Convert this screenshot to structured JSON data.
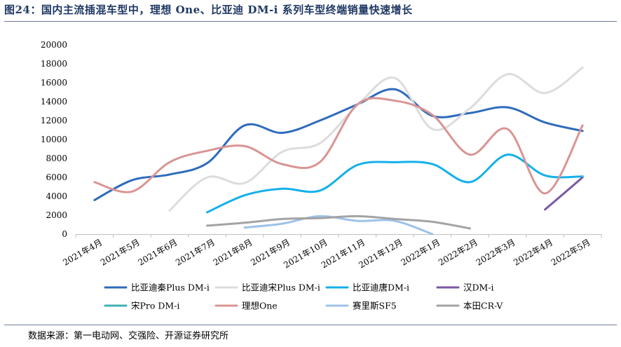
{
  "title": "图24：国内主流插混车型中，理想 One、比亚迪 DM-i 系列车型终端销量快速增长",
  "source": "数据来源：第一电动网、交强险、开源证券研究所",
  "chart_data": {
    "type": "line",
    "title": "",
    "xlabel": "",
    "ylabel": "",
    "ylim": [
      0,
      20000
    ],
    "yticks": [
      0,
      2000,
      4000,
      6000,
      8000,
      10000,
      12000,
      14000,
      16000,
      18000,
      20000
    ],
    "grid": false,
    "legend_position": "bottom",
    "categories": [
      "2021年4月",
      "2021年5月",
      "2021年6月",
      "2021年7月",
      "2021年8月",
      "2021年9月",
      "2021年10月",
      "2021年11月",
      "2021年12月",
      "2022年1月",
      "2022年2月",
      "2022年3月",
      "2022年4月",
      "2022年5月"
    ],
    "series": [
      {
        "name": "比亚迪秦Plus DM-i",
        "color": "#2e6bbd",
        "values": [
          3600,
          5700,
          6300,
          7500,
          11500,
          10700,
          12000,
          13700,
          15300,
          12500,
          12800,
          13400,
          11800,
          10900
        ]
      },
      {
        "name": "比亚迪宋Plus DM-i",
        "color": "#dcdcdc",
        "values": [
          null,
          null,
          2500,
          6000,
          5400,
          8700,
          9600,
          13600,
          16500,
          11100,
          13300,
          16900,
          14900,
          17600
        ]
      },
      {
        "name": "比亚迪唐DM-i",
        "color": "#14b0ea",
        "values": [
          null,
          null,
          null,
          2300,
          4100,
          4800,
          4600,
          7300,
          7600,
          7400,
          5500,
          8400,
          6200,
          6100
        ]
      },
      {
        "name": "汉DM-i",
        "color": "#7b57a4",
        "values": [
          null,
          null,
          null,
          null,
          null,
          null,
          null,
          null,
          null,
          null,
          null,
          null,
          2600,
          6000
        ]
      },
      {
        "name": "宋Pro DM-i",
        "color": "#3fb0b5",
        "values": [
          null,
          null,
          null,
          null,
          null,
          null,
          null,
          null,
          null,
          null,
          null,
          null,
          null,
          6100
        ]
      },
      {
        "name": "理想One",
        "color": "#d99494",
        "values": [
          5500,
          4500,
          7600,
          8800,
          9300,
          7400,
          7600,
          13700,
          14100,
          12600,
          8400,
          11100,
          4300,
          11500
        ]
      },
      {
        "name": "赛里斯SF5",
        "color": "#9ec2e9",
        "values": [
          null,
          null,
          null,
          null,
          700,
          1100,
          1900,
          1400,
          1400,
          0,
          null,
          null,
          null,
          null
        ]
      },
      {
        "name": "本田CR-V",
        "color": "#a3a3a3",
        "values": [
          null,
          null,
          null,
          900,
          1200,
          1600,
          1700,
          1900,
          1600,
          1300,
          600,
          null,
          null,
          null
        ]
      }
    ]
  }
}
